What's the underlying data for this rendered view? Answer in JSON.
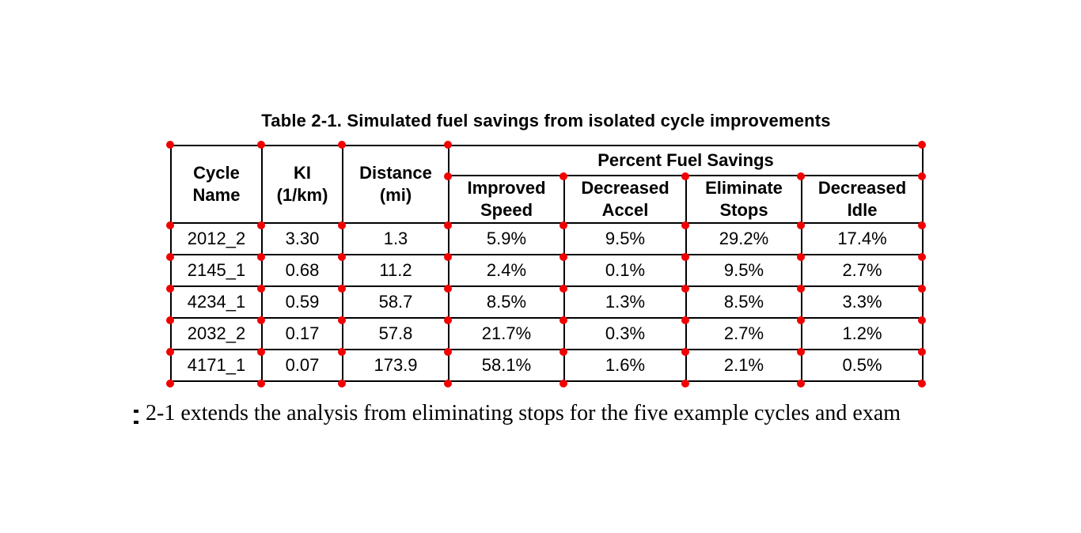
{
  "document": {
    "table_title": "Table 2-1. Simulated fuel savings from isolated cycle improvements",
    "body_text_fragment": "2-1 extends the analysis from eliminating stops for the five example cycles and exam"
  },
  "table": {
    "group_header": "Percent Fuel Savings",
    "col_headers": [
      "Cycle\nName",
      "KI\n(1/km)",
      "Distance\n(mi)"
    ],
    "sub_headers": [
      "Improved\nSpeed",
      "Decreased\nAccel",
      "Eliminate\nStops",
      "Decreased\nIdle"
    ],
    "rows": [
      [
        "2012_2",
        "3.30",
        "1.3",
        "5.9%",
        "9.5%",
        "29.2%",
        "17.4%"
      ],
      [
        "2145_1",
        "0.68",
        "11.2",
        "2.4%",
        "0.1%",
        "9.5%",
        "2.7%"
      ],
      [
        "4234_1",
        "0.59",
        "58.7",
        "8.5%",
        "1.3%",
        "8.5%",
        "3.3%"
      ],
      [
        "2032_2",
        "0.17",
        "57.8",
        "21.7%",
        "0.3%",
        "2.7%",
        "1.2%"
      ],
      [
        "4171_1",
        "0.07",
        "173.9",
        "58.1%",
        "1.6%",
        "2.1%",
        "0.5%"
      ]
    ]
  },
  "annotations": {
    "marker_color": "#f20000"
  }
}
